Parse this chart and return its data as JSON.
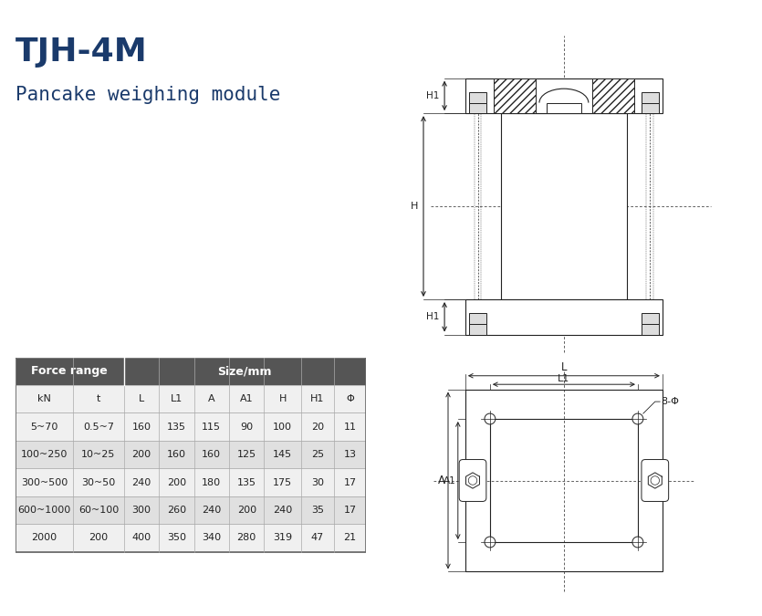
{
  "title": "TJH-4M",
  "subtitle": "Pancake weighing module",
  "title_color": "#1a3a6b",
  "subtitle_color": "#1a3a6b",
  "table_header1": "Force range",
  "table_header2": "Size/mm",
  "table_col_headers": [
    "kN",
    "t",
    "L",
    "L1",
    "A",
    "A1",
    "H",
    "H1",
    "Φ"
  ],
  "table_rows": [
    [
      "5~70",
      "0.5~7",
      "160",
      "135",
      "115",
      "90",
      "100",
      "20",
      "11"
    ],
    [
      "100~250",
      "10~25",
      "200",
      "160",
      "160",
      "125",
      "145",
      "25",
      "13"
    ],
    [
      "300~500",
      "30~50",
      "240",
      "200",
      "180",
      "135",
      "175",
      "30",
      "17"
    ],
    [
      "600~1000",
      "60~100",
      "300",
      "260",
      "240",
      "200",
      "240",
      "35",
      "17"
    ],
    [
      "2000",
      "200",
      "400",
      "350",
      "340",
      "280",
      "319",
      "47",
      "21"
    ]
  ],
  "header_bg": "#555555",
  "header_fg": "#ffffff",
  "row_bg_odd": "#e0e0e0",
  "row_bg_even": "#f0f0f0",
  "line_color": "#222222",
  "bg_color": "#ffffff"
}
